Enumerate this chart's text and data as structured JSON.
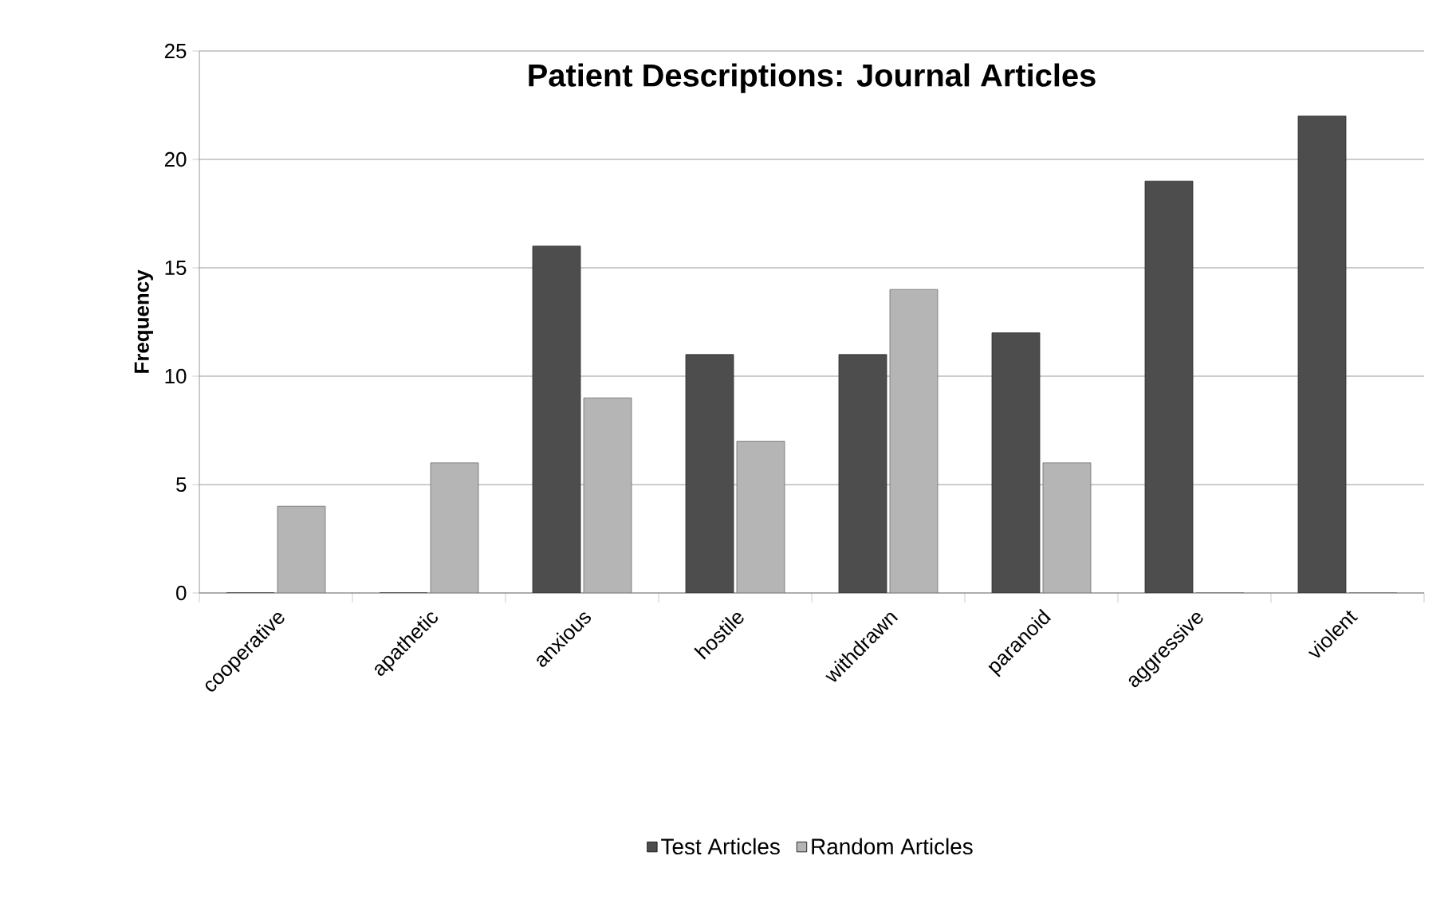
{
  "chart_data": {
    "type": "bar",
    "title": "Patient Descriptions: Journal Articles",
    "ylabel": "Frequency",
    "categories": [
      "cooperative",
      "apathetic",
      "anxious",
      "hostile",
      "withdrawn",
      "paranoid",
      "aggressive",
      "violent"
    ],
    "series": [
      {
        "name": "Test Articles",
        "color": "#4d4d4d",
        "values": [
          0,
          0,
          16,
          11,
          11,
          12,
          19,
          22
        ]
      },
      {
        "name": "Random Articles",
        "color": "#b5b5b5",
        "values": [
          4,
          6,
          9,
          7,
          14,
          6,
          0,
          0
        ]
      }
    ],
    "ylim": [
      0,
      25
    ],
    "yticks": [
      0,
      5,
      10,
      15,
      20,
      25
    ],
    "grid": "y",
    "legend": "bottom"
  }
}
